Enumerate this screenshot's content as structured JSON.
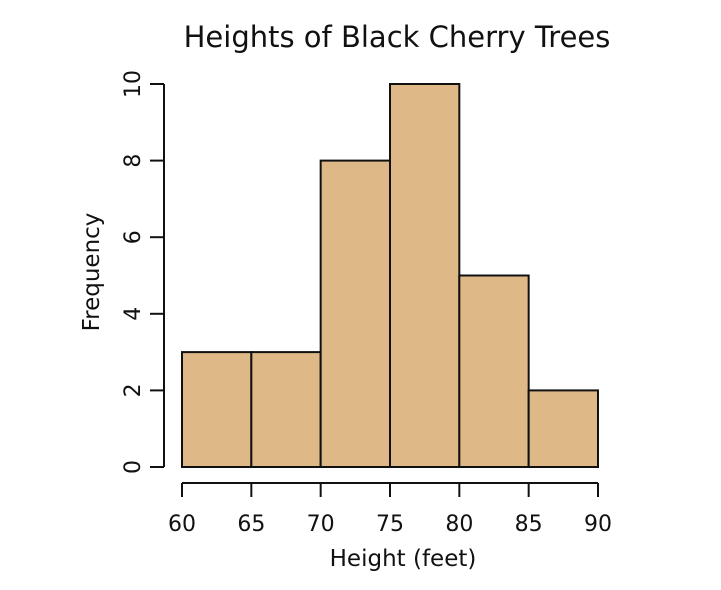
{
  "chart_data": {
    "type": "bar",
    "title": "Heights of Black Cherry Trees",
    "xlabel": "Height (feet)",
    "ylabel": "Frequency",
    "bins": [
      {
        "x0": 60,
        "x1": 65,
        "count": 3
      },
      {
        "x0": 65,
        "x1": 70,
        "count": 3
      },
      {
        "x0": 70,
        "x1": 75,
        "count": 8
      },
      {
        "x0": 75,
        "x1": 80,
        "count": 10
      },
      {
        "x0": 80,
        "x1": 85,
        "count": 5
      },
      {
        "x0": 85,
        "x1": 90,
        "count": 2
      }
    ],
    "xlim": [
      60,
      90
    ],
    "ylim": [
      0,
      10
    ],
    "xticks": [
      "60",
      "65",
      "70",
      "75",
      "80",
      "85",
      "90"
    ],
    "yticks": [
      "0",
      "2",
      "4",
      "6",
      "8",
      "10"
    ],
    "grid": false,
    "bar_color": "#deb887",
    "edge_color": "#111111"
  }
}
